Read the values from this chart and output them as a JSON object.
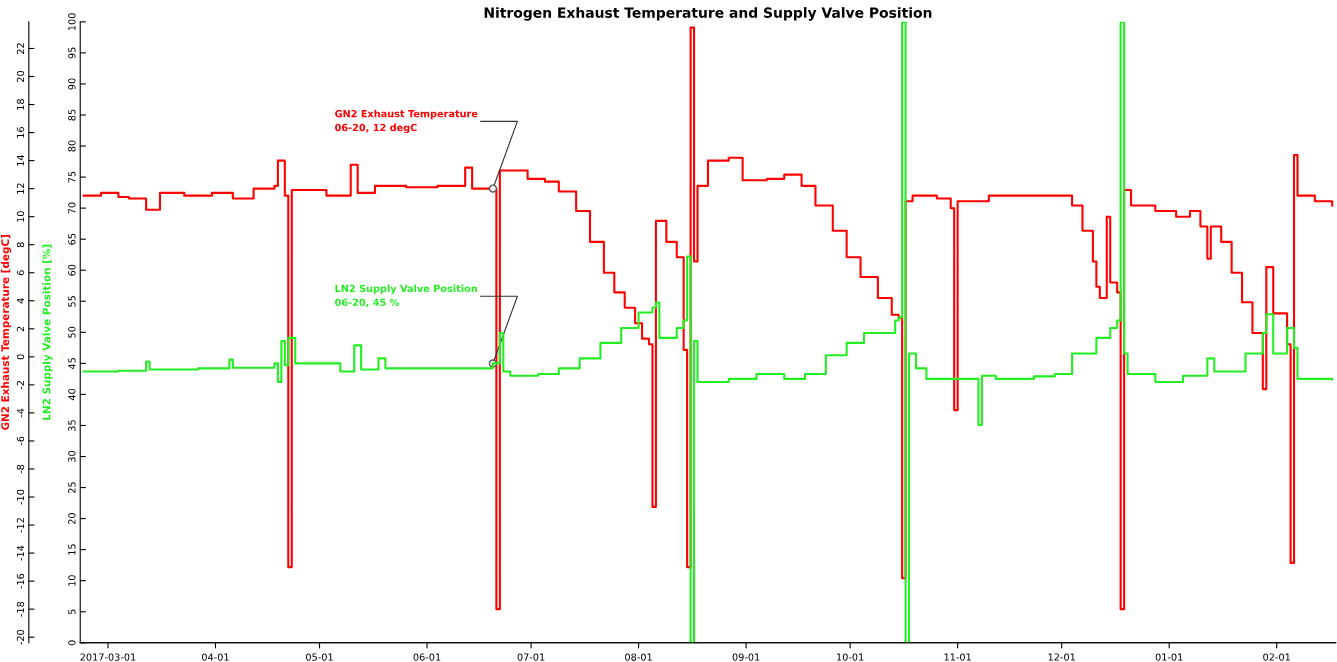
{
  "chart_data": {
    "type": "step",
    "title": "Nitrogen Exhaust Temperature and Supply Valve Position",
    "ylabel": "GN2 Exhaust Temperature [degC]",
    "y2label": "LN2 Supply Valve Position [%]",
    "xlim": [
      "2017-02-21",
      "2018-02-18"
    ],
    "xticks": [
      {
        "value": "2017-03-01",
        "label": "2017-03-01"
      },
      {
        "value": "2017-04-01",
        "label": "04-01"
      },
      {
        "value": "2017-05-01",
        "label": "05-01"
      },
      {
        "value": "2017-06-01",
        "label": "06-01"
      },
      {
        "value": "2017-07-01",
        "label": "07-01"
      },
      {
        "value": "2017-08-01",
        "label": "08-01"
      },
      {
        "value": "2017-09-01",
        "label": "09-01"
      },
      {
        "value": "2017-10-01",
        "label": "10-01"
      },
      {
        "value": "2017-11-01",
        "label": "11-01"
      },
      {
        "value": "2017-12-01",
        "label": "12-01"
      },
      {
        "value": "2018-01-01",
        "label": "01-01"
      },
      {
        "value": "2018-02-01",
        "label": "02-01"
      }
    ],
    "ylim": [
      -20.4,
      23.9
    ],
    "yticks": [
      -20,
      -18,
      -16,
      -14,
      -12,
      -10,
      -8,
      -6,
      -4,
      -2,
      0,
      2,
      4,
      6,
      8,
      10,
      12,
      14,
      16,
      18,
      20,
      22
    ],
    "y2lim": [
      0,
      100
    ],
    "y2ticks": [
      0,
      5,
      10,
      15,
      20,
      25,
      30,
      35,
      40,
      45,
      50,
      55,
      60,
      65,
      70,
      75,
      80,
      85,
      90,
      95,
      100
    ],
    "grid": false,
    "legend": false,
    "marker": "none",
    "line_style": "solid",
    "series": [
      {
        "color": "#ff0000",
        "x": [
          "2017-02-22",
          "2017-02-27",
          "2017-03-04",
          "2017-03-07",
          "2017-03-12",
          "2017-03-16",
          "2017-03-23",
          "2017-03-31",
          "2017-04-06",
          "2017-04-12",
          "2017-04-18",
          "2017-04-19",
          "2017-04-21",
          "2017-04-22",
          "2017-04-23",
          "2017-04-28",
          "2017-05-03",
          "2017-05-10",
          "2017-05-12",
          "2017-05-17",
          "2017-05-26",
          "2017-06-04",
          "2017-06-12",
          "2017-06-14",
          "2017-06-20",
          "2017-06-21",
          "2017-06-22",
          "2017-06-30",
          "2017-07-05",
          "2017-07-09",
          "2017-07-14",
          "2017-07-18",
          "2017-07-22",
          "2017-07-25",
          "2017-07-28",
          "2017-07-31",
          "2017-08-02",
          "2017-08-04",
          "2017-08-05",
          "2017-08-06",
          "2017-08-09",
          "2017-08-12",
          "2017-08-14",
          "2017-08-15",
          "2017-08-16",
          "2017-08-17",
          "2017-08-18",
          "2017-08-21",
          "2017-08-27",
          "2017-08-31",
          "2017-09-07",
          "2017-09-12",
          "2017-09-17",
          "2017-09-21",
          "2017-09-26",
          "2017-09-30",
          "2017-10-04",
          "2017-10-09",
          "2017-10-13",
          "2017-10-15",
          "2017-10-16",
          "2017-10-17",
          "2017-10-19",
          "2017-10-26",
          "2017-10-30",
          "2017-10-31",
          "2017-11-01",
          "2017-11-10",
          "2017-11-18",
          "2017-11-30",
          "2017-12-04",
          "2017-12-07",
          "2017-12-10",
          "2017-12-11",
          "2017-12-12",
          "2017-12-14",
          "2017-12-15",
          "2017-12-17",
          "2017-12-18",
          "2017-12-19",
          "2017-12-21",
          "2017-12-28",
          "2018-01-03",
          "2018-01-07",
          "2018-01-10",
          "2018-01-12",
          "2018-01-13",
          "2018-01-16",
          "2018-01-19",
          "2018-01-22",
          "2018-01-25",
          "2018-01-28",
          "2018-01-29",
          "2018-01-31",
          "2018-02-04",
          "2018-02-05",
          "2018-02-06",
          "2018-02-07",
          "2018-02-12",
          "2018-02-17"
        ],
        "values": [
          11.5,
          11.7,
          11.4,
          11.3,
          10.5,
          11.7,
          11.5,
          11.7,
          11.3,
          12.0,
          12.2,
          14.0,
          11.5,
          -15.0,
          11.9,
          11.9,
          11.5,
          13.7,
          11.7,
          12.2,
          12.1,
          12.2,
          13.5,
          12.0,
          12.0,
          -18.0,
          13.3,
          12.7,
          12.5,
          11.8,
          10.4,
          8.2,
          6.0,
          4.6,
          3.5,
          2.4,
          1.3,
          0.9,
          -10.7,
          9.7,
          8.2,
          7.1,
          0.5,
          -15.0,
          23.5,
          6.8,
          12.2,
          14.0,
          14.2,
          12.6,
          12.7,
          13.0,
          12.2,
          10.8,
          9.0,
          7.1,
          5.7,
          4.2,
          3.0,
          2.8,
          -15.8,
          11.1,
          11.5,
          11.3,
          10.6,
          -3.8,
          11.1,
          11.5,
          11.5,
          11.5,
          10.8,
          9.0,
          6.8,
          5.0,
          4.2,
          10.0,
          5.3,
          4.6,
          -18.0,
          11.9,
          10.8,
          10.4,
          10.0,
          10.4,
          9.3,
          7.0,
          9.3,
          8.2,
          6.0,
          3.9,
          1.7,
          -2.3,
          6.4,
          3.1,
          0.9,
          -14.7,
          14.4,
          11.5,
          11.1,
          10.8
        ]
      },
      {
        "color": "#22ee22",
        "axis": "y2",
        "x": [
          "2017-02-22",
          "2017-03-04",
          "2017-03-12",
          "2017-03-13",
          "2017-03-27",
          "2017-04-05",
          "2017-04-06",
          "2017-04-18",
          "2017-04-19",
          "2017-04-20",
          "2017-04-21",
          "2017-04-22",
          "2017-04-24",
          "2017-05-07",
          "2017-05-11",
          "2017-05-13",
          "2017-05-18",
          "2017-05-20",
          "2017-05-30",
          "2017-06-20",
          "2017-06-22",
          "2017-06-23",
          "2017-06-25",
          "2017-07-03",
          "2017-07-09",
          "2017-07-15",
          "2017-07-21",
          "2017-07-27",
          "2017-08-01",
          "2017-08-05",
          "2017-08-06",
          "2017-08-07",
          "2017-08-12",
          "2017-08-14",
          "2017-08-15",
          "2017-08-16",
          "2017-08-17",
          "2017-08-18",
          "2017-08-27",
          "2017-09-04",
          "2017-09-12",
          "2017-09-18",
          "2017-09-24",
          "2017-09-30",
          "2017-10-05",
          "2017-10-14",
          "2017-10-15",
          "2017-10-16",
          "2017-10-17",
          "2017-10-18",
          "2017-10-20",
          "2017-10-23",
          "2017-11-01",
          "2017-11-07",
          "2017-11-08",
          "2017-11-12",
          "2017-11-23",
          "2017-11-29",
          "2017-12-04",
          "2017-12-11",
          "2017-12-15",
          "2017-12-17",
          "2017-12-18",
          "2017-12-19",
          "2017-12-20",
          "2017-12-28",
          "2018-01-05",
          "2018-01-12",
          "2018-01-14",
          "2018-01-23",
          "2018-01-28",
          "2018-01-29",
          "2018-01-31",
          "2018-02-04",
          "2018-02-06",
          "2018-02-07",
          "2018-02-17"
        ],
        "values": [
          43.7,
          43.8,
          45.3,
          44.0,
          44.2,
          45.6,
          44.3,
          45.0,
          42.0,
          48.6,
          44.7,
          49.1,
          45.0,
          43.7,
          47.9,
          44.0,
          45.8,
          44.2,
          44.2,
          45.0,
          49.9,
          43.7,
          43.0,
          43.3,
          44.2,
          45.8,
          48.3,
          50.7,
          53.2,
          54.0,
          54.8,
          49.1,
          50.7,
          51.9,
          62.2,
          0,
          48.6,
          42.0,
          42.5,
          43.3,
          42.5,
          43.3,
          46.3,
          48.3,
          49.9,
          51.9,
          52.4,
          100,
          0,
          46.6,
          44.2,
          42.5,
          42.5,
          35.1,
          43.0,
          42.5,
          42.9,
          43.3,
          46.6,
          49.1,
          50.7,
          51.9,
          100,
          46.6,
          43.3,
          42.0,
          43.0,
          45.8,
          43.7,
          46.6,
          49.9,
          52.9,
          46.6,
          50.7,
          47.5,
          42.5,
          42.4
        ]
      }
    ],
    "annotations": [
      {
        "text": "GN2 Exhaust Temperature\n06-20, 12 degC",
        "x": "2017-06-20",
        "y": 12
      },
      {
        "text": "LN2 Supply Valve Position\n06-20, 45 %",
        "x": "2017-06-20",
        "y": -0.47
      }
    ]
  }
}
